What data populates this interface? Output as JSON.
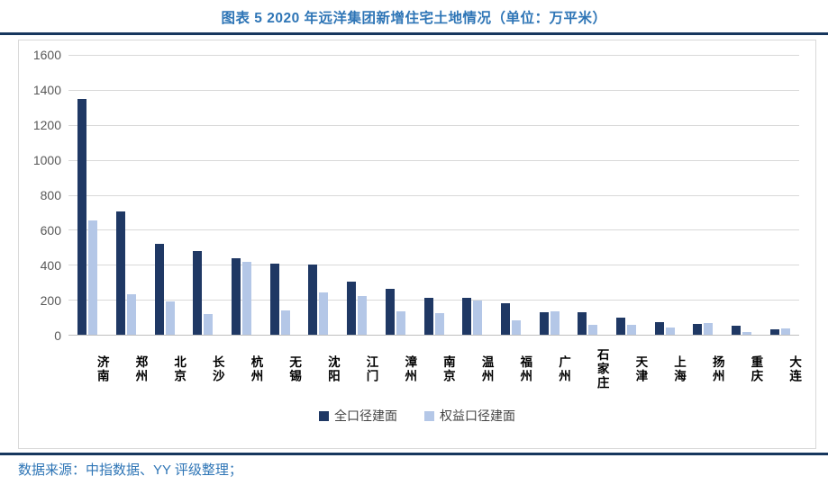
{
  "page": {
    "title": "图表 5 2020 年远洋集团新增住宅土地情况（单位：万平米）",
    "footer": "数据来源：中指数据、YY 评级整理；"
  },
  "colors": {
    "title_blue": "#2E75B6",
    "rule_navy": "#17375E",
    "dark_bar": "#1F3864",
    "light_bar": "#B4C7E7",
    "gridline": "#D9D9D9",
    "tick_text": "#595959"
  },
  "chart_data": {
    "type": "bar",
    "title": "图表 5 2020 年远洋集团新增住宅土地情况（单位：万平米）",
    "xlabel": "",
    "ylabel": "",
    "categories": [
      "济南",
      "郑州",
      "北京",
      "长沙",
      "杭州",
      "无锡",
      "沈阳",
      "江门",
      "漳州",
      "南京",
      "温州",
      "福州",
      "广州",
      "石家庄",
      "天津",
      "上海",
      "扬州",
      "重庆",
      "大连"
    ],
    "series": [
      {
        "name": "全口径建面",
        "color": "#1F3864",
        "values": [
          1350,
          706,
          518,
          481,
          438,
          406,
          400,
          306,
          265,
          212,
          210,
          178,
          130,
          131,
          99,
          74,
          63,
          50,
          33
        ]
      },
      {
        "name": "权益口径建面",
        "color": "#B4C7E7",
        "values": [
          656,
          231,
          190,
          118,
          415,
          140,
          241,
          221,
          136,
          124,
          197,
          80,
          133,
          57,
          55,
          42,
          68,
          18,
          38
        ]
      }
    ],
    "ylim": [
      0,
      1600
    ],
    "ytick_step": 200,
    "grid": "horizontal",
    "legend_position": "bottom"
  }
}
